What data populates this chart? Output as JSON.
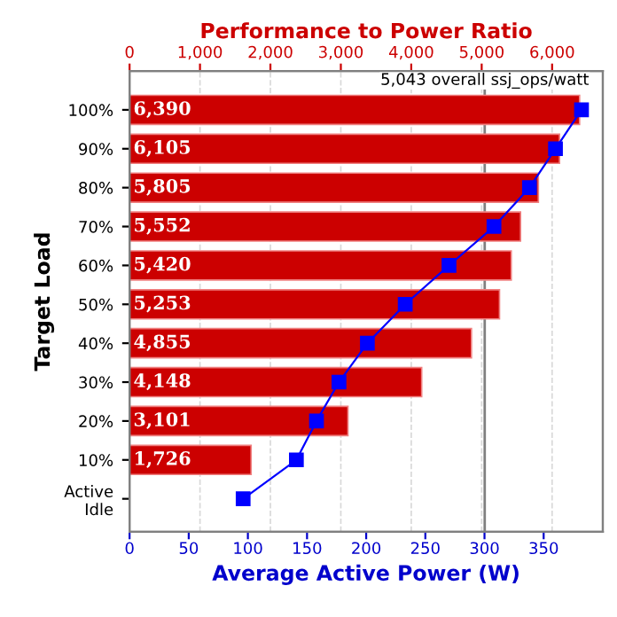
{
  "chart_data": {
    "type": "bar",
    "orientation": "horizontal",
    "categories": [
      "100%",
      "90%",
      "80%",
      "70%",
      "60%",
      "50%",
      "40%",
      "30%",
      "20%",
      "10%",
      "Active\nIdle"
    ],
    "xlabel": "Average Active Power (W)",
    "x2label": "Performance to Power Ratio",
    "ylabel": "Target Load",
    "series": [
      {
        "axis": "x2",
        "color": "#cc0000",
        "values": [
          6390,
          6105,
          5805,
          5552,
          5420,
          5253,
          4855,
          4148,
          3101,
          1726,
          null
        ],
        "value_labels": [
          "6,390",
          "6,105",
          "5,805",
          "5,552",
          "5,420",
          "5,253",
          "4,855",
          "4,148",
          "3,101",
          "1,726",
          null
        ]
      },
      {
        "type": "line",
        "color": "#0000ff",
        "marker": "square",
        "line_style": "solid",
        "values": [
          382,
          360,
          338,
          308,
          270,
          233,
          201,
          177,
          158,
          141,
          96
        ]
      }
    ],
    "xlim": [
      0,
      400
    ],
    "xticks": [
      0,
      50,
      100,
      150,
      200,
      250,
      300,
      350
    ],
    "x2lim": [
      0,
      6720
    ],
    "x2ticks": [
      0,
      {
        "value": 1000,
        "label": "1,000"
      },
      {
        "value": 2000,
        "label": "2,000"
      },
      {
        "value": 3000,
        "label": "3,000"
      },
      {
        "value": 4000,
        "label": "4,000"
      },
      {
        "value": 5000,
        "label": "5,000"
      },
      {
        "value": 6000,
        "label": "6,000"
      }
    ],
    "ref_lines": [
      {
        "axis": "x2",
        "value": 5043,
        "label": "5,043 overall ssj_ops/watt",
        "color": "#808080"
      }
    ],
    "grid": "x2",
    "legend": false
  }
}
